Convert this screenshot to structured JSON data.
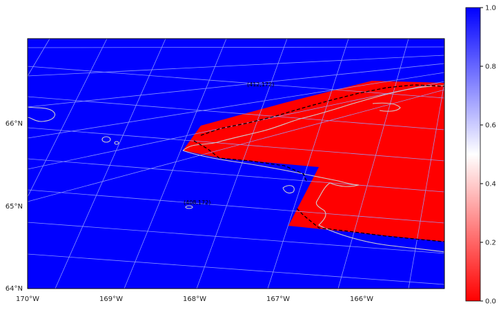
{
  "chart_data": {
    "type": "heatmap",
    "map": {
      "projection": "oblique conic",
      "graticule": true,
      "extent_lon": [
        -170,
        -165.0
      ],
      "extent_lat": [
        64,
        67
      ]
    },
    "x_ticks": [
      "170°W",
      "169°W",
      "168°W",
      "167°W",
      "166°W"
    ],
    "y_ticks": [
      "64°N",
      "65°N",
      "66°N"
    ],
    "annotations": [
      "(412,172)",
      "(408,172)"
    ],
    "colorbar": {
      "ticks": [
        "0.0",
        "0.2",
        "0.4",
        "0.6",
        "0.8",
        "1.0"
      ],
      "range": [
        0.0,
        1.0
      ],
      "colormap": "bwr_r",
      "low_color": "#ff0000",
      "mid_color": "#ffffff",
      "high_color": "#0000ff"
    },
    "field": {
      "background_value": 1.0,
      "region_value": 0.0,
      "background_color": "#0000ff",
      "region_color": "#ff0000"
    },
    "coastline_color": "#c8c8c8",
    "graticule_color": "#9aa0ff",
    "boundary_style": "dashed black"
  }
}
